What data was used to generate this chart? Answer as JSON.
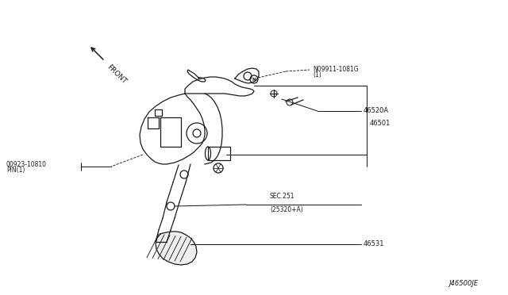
{
  "bg_color": "#ffffff",
  "line_color": "#1a1a1a",
  "text_color": "#1a1a1a",
  "diagram_code": "J46500JE",
  "labels": {
    "part1_line1": "N09911-1081G",
    "part1_line2": "(1)",
    "part2": "46520A",
    "part3": "46501",
    "part4_line1": "00923-10810",
    "part4_line2": "PIN(1)",
    "part5_line1": "SEC.251",
    "part5_line2": "(25320+A)",
    "part6": "46531",
    "front": "FRONT"
  },
  "figsize": [
    6.4,
    3.72
  ],
  "dpi": 100
}
